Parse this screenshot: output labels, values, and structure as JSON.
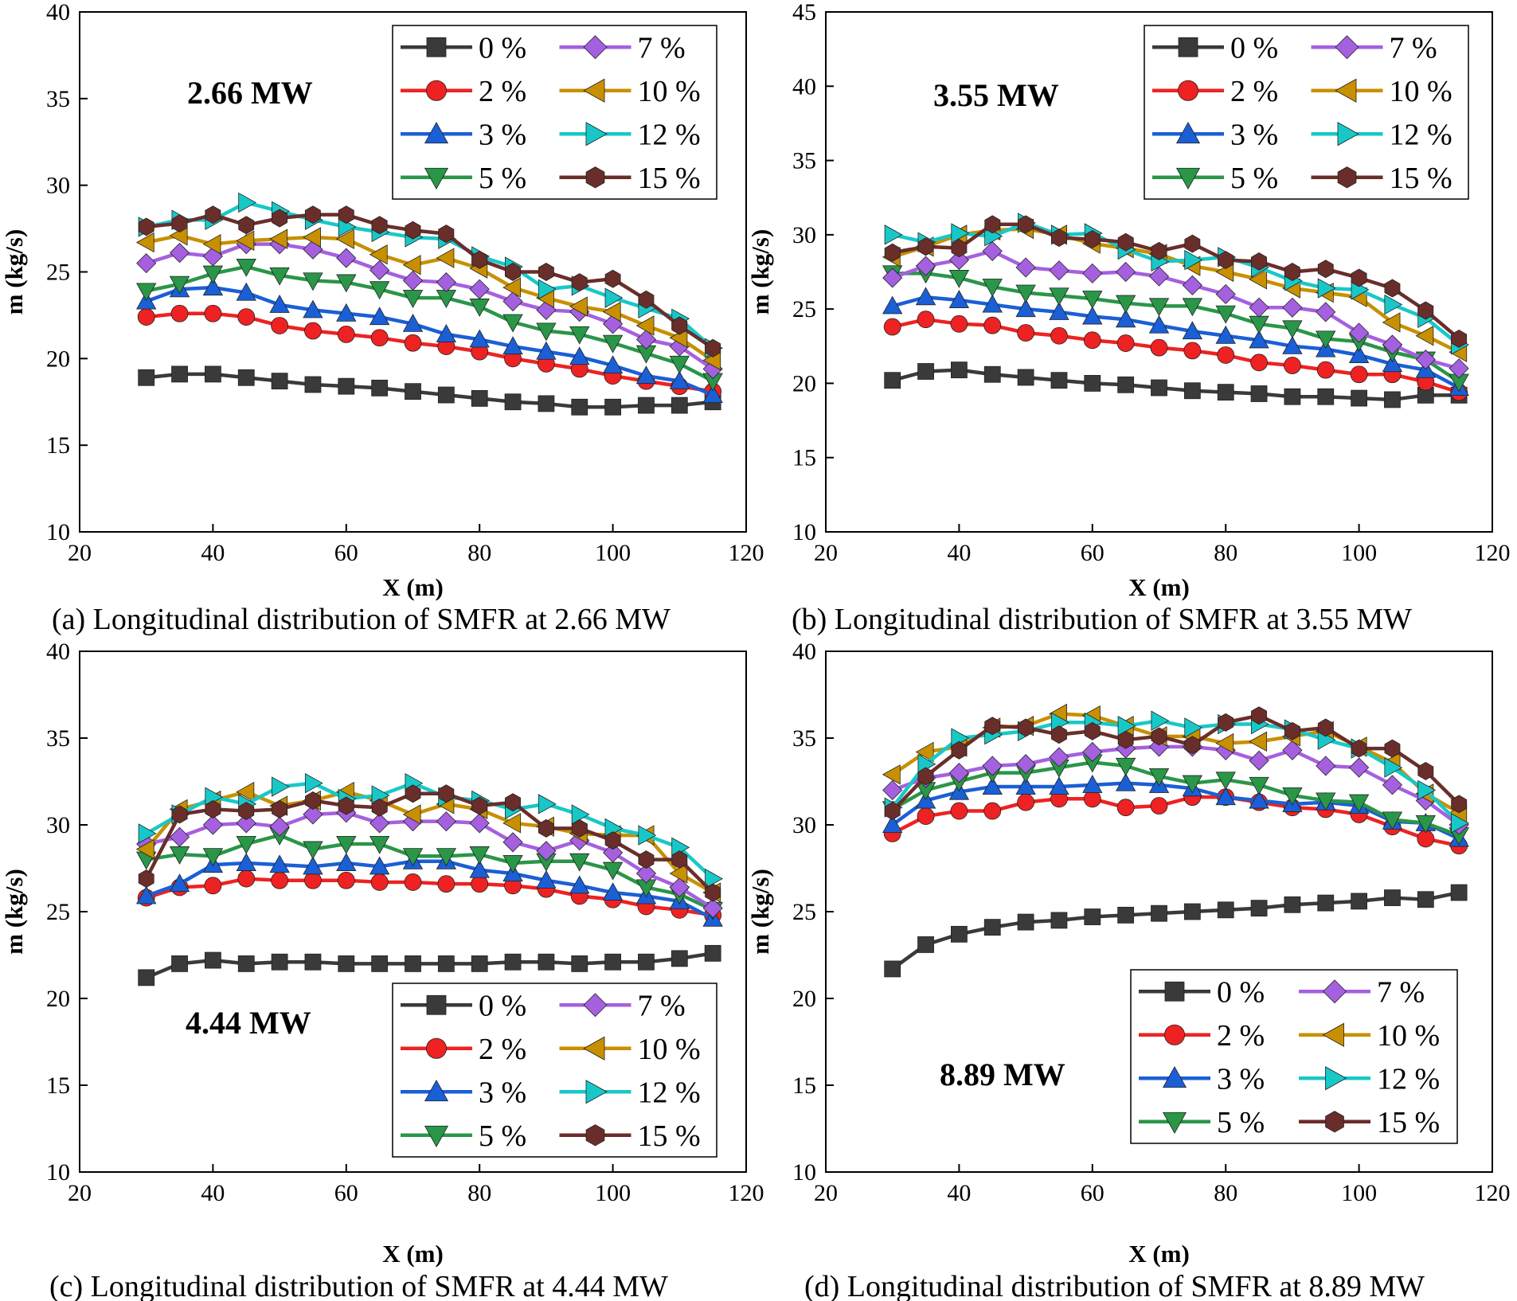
{
  "chart_data": [
    {
      "type": "line",
      "caption": "(a) Longitudinal distribution of SMFR at 2.66 MW",
      "annotation": "2.66 MW",
      "xlabel": "X (m)",
      "ylabel": "m (kg/s)",
      "xlim": [
        20,
        120
      ],
      "ylim": [
        10,
        40
      ],
      "xticks": [
        20,
        40,
        60,
        80,
        100,
        120
      ],
      "yticks": [
        10,
        15,
        20,
        25,
        30,
        35,
        40
      ],
      "legend_position": "top-right",
      "x": [
        30,
        35,
        40,
        45,
        50,
        55,
        60,
        65,
        70,
        75,
        80,
        85,
        90,
        95,
        100,
        105,
        110,
        115
      ],
      "series": [
        {
          "name": "0 %",
          "values": [
            18.9,
            19.1,
            19.1,
            18.9,
            18.7,
            18.5,
            18.4,
            18.3,
            18.1,
            17.9,
            17.7,
            17.5,
            17.4,
            17.2,
            17.2,
            17.3,
            17.3,
            17.5
          ]
        },
        {
          "name": "2 %",
          "values": [
            22.4,
            22.6,
            22.6,
            22.4,
            21.9,
            21.6,
            21.4,
            21.2,
            20.9,
            20.7,
            20.4,
            20.0,
            19.7,
            19.4,
            19.0,
            18.7,
            18.4,
            18.1
          ]
        },
        {
          "name": "3 %",
          "values": [
            23.3,
            24.0,
            24.1,
            23.8,
            23.1,
            22.8,
            22.6,
            22.4,
            22.0,
            21.4,
            21.1,
            20.7,
            20.4,
            20.1,
            19.6,
            19.0,
            18.7,
            17.9
          ]
        },
        {
          "name": "5 %",
          "values": [
            23.9,
            24.3,
            24.9,
            25.3,
            24.8,
            24.5,
            24.4,
            24.0,
            23.5,
            23.5,
            23.0,
            22.1,
            21.6,
            21.4,
            20.9,
            20.3,
            19.7,
            18.7
          ]
        },
        {
          "name": "7 %",
          "values": [
            25.5,
            26.1,
            25.9,
            26.6,
            26.6,
            26.3,
            25.8,
            25.1,
            24.5,
            24.4,
            24.0,
            23.3,
            22.8,
            22.7,
            22.0,
            21.1,
            20.7,
            19.4
          ]
        },
        {
          "name": "10 %",
          "values": [
            26.7,
            27.1,
            26.6,
            26.8,
            26.9,
            27.0,
            26.9,
            26.0,
            25.4,
            25.8,
            25.2,
            24.1,
            23.5,
            23.0,
            22.7,
            21.9,
            21.2,
            19.9
          ]
        },
        {
          "name": "12 %",
          "values": [
            27.6,
            28.0,
            28.0,
            29.0,
            28.5,
            28.0,
            27.6,
            27.3,
            27.0,
            26.9,
            25.9,
            25.3,
            24.0,
            24.2,
            23.5,
            22.9,
            22.3,
            20.6
          ]
        },
        {
          "name": "15 %",
          "values": [
            27.6,
            27.8,
            28.3,
            27.7,
            28.1,
            28.3,
            28.3,
            27.7,
            27.4,
            27.2,
            25.7,
            25.0,
            25.0,
            24.4,
            24.6,
            23.4,
            21.9,
            20.6
          ]
        }
      ]
    },
    {
      "type": "line",
      "caption": "(b) Longitudinal distribution of SMFR at 3.55 MW",
      "annotation": "3.55 MW",
      "xlabel": "X (m)",
      "ylabel": "m (kg/s)",
      "xlim": [
        20,
        120
      ],
      "ylim": [
        10,
        45
      ],
      "xticks": [
        20,
        40,
        60,
        80,
        100,
        120
      ],
      "yticks": [
        10,
        15,
        20,
        25,
        30,
        35,
        40,
        45
      ],
      "legend_position": "top-right",
      "x": [
        30,
        35,
        40,
        45,
        50,
        55,
        60,
        65,
        70,
        75,
        80,
        85,
        90,
        95,
        100,
        105,
        110,
        115
      ],
      "series": [
        {
          "name": "0 %",
          "values": [
            20.2,
            20.8,
            20.9,
            20.6,
            20.4,
            20.2,
            20.0,
            19.9,
            19.7,
            19.5,
            19.4,
            19.3,
            19.1,
            19.1,
            19.0,
            18.9,
            19.2,
            19.2
          ]
        },
        {
          "name": "2 %",
          "values": [
            23.8,
            24.3,
            24.0,
            23.9,
            23.4,
            23.2,
            22.9,
            22.7,
            22.4,
            22.2,
            21.9,
            21.4,
            21.2,
            20.9,
            20.6,
            20.6,
            20.1,
            19.4
          ]
        },
        {
          "name": "3 %",
          "values": [
            25.2,
            25.8,
            25.6,
            25.3,
            25.0,
            24.8,
            24.5,
            24.3,
            23.9,
            23.5,
            23.2,
            22.9,
            22.5,
            22.3,
            21.9,
            21.3,
            20.9,
            19.7
          ]
        },
        {
          "name": "5 %",
          "values": [
            27.4,
            27.4,
            27.1,
            26.5,
            26.1,
            25.9,
            25.7,
            25.4,
            25.2,
            25.2,
            24.7,
            24.0,
            23.7,
            23.0,
            22.8,
            22.1,
            21.6,
            20.1
          ]
        },
        {
          "name": "7 %",
          "values": [
            27.1,
            27.9,
            28.3,
            28.9,
            27.8,
            27.6,
            27.4,
            27.5,
            27.2,
            26.6,
            26.0,
            25.1,
            25.1,
            24.8,
            23.4,
            22.6,
            21.6,
            21.0
          ]
        },
        {
          "name": "10 %",
          "values": [
            28.5,
            29.2,
            30.0,
            30.3,
            30.4,
            30.0,
            29.4,
            29.1,
            28.7,
            27.9,
            27.5,
            27.0,
            26.4,
            26.1,
            25.8,
            24.1,
            23.2,
            22.1
          ]
        },
        {
          "name": "12 %",
          "values": [
            30.0,
            29.5,
            30.1,
            29.9,
            30.8,
            30.0,
            30.1,
            29.0,
            28.2,
            28.3,
            28.5,
            27.8,
            26.9,
            26.4,
            26.3,
            25.3,
            24.4,
            22.6
          ]
        },
        {
          "name": "15 %",
          "values": [
            28.8,
            29.2,
            29.1,
            30.7,
            30.7,
            29.8,
            29.7,
            29.5,
            28.9,
            29.4,
            28.3,
            28.2,
            27.5,
            27.7,
            27.1,
            26.4,
            24.9,
            23.0
          ]
        }
      ]
    },
    {
      "type": "line",
      "caption": "(c) Longitudinal distribution of SMFR at 4.44 MW",
      "annotation": "4.44 MW",
      "xlabel": "X (m)",
      "ylabel": "m (kg/s)",
      "xlim": [
        20,
        120
      ],
      "ylim": [
        10,
        40
      ],
      "xticks": [
        20,
        40,
        60,
        80,
        100,
        120
      ],
      "yticks": [
        10,
        15,
        20,
        25,
        30,
        35,
        40
      ],
      "legend_position": "bottom-right",
      "x": [
        30,
        35,
        40,
        45,
        50,
        55,
        60,
        65,
        70,
        75,
        80,
        85,
        90,
        95,
        100,
        105,
        110,
        115
      ],
      "series": [
        {
          "name": "0 %",
          "values": [
            21.2,
            22.0,
            22.2,
            22.0,
            22.1,
            22.1,
            22.0,
            22.0,
            22.0,
            22.0,
            22.0,
            22.1,
            22.1,
            22.0,
            22.1,
            22.1,
            22.3,
            22.6
          ]
        },
        {
          "name": "2 %",
          "values": [
            25.8,
            26.4,
            26.5,
            26.9,
            26.8,
            26.8,
            26.8,
            26.7,
            26.7,
            26.6,
            26.6,
            26.5,
            26.3,
            25.9,
            25.7,
            25.3,
            25.1,
            24.8
          ]
        },
        {
          "name": "3 %",
          "values": [
            25.9,
            26.6,
            27.7,
            27.8,
            27.7,
            27.6,
            27.8,
            27.6,
            27.9,
            27.9,
            27.4,
            27.2,
            26.8,
            26.5,
            26.1,
            25.9,
            25.6,
            24.6
          ]
        },
        {
          "name": "5 %",
          "values": [
            28.0,
            28.3,
            28.2,
            28.9,
            29.4,
            28.6,
            28.9,
            28.9,
            28.2,
            28.2,
            28.3,
            27.8,
            27.9,
            27.9,
            27.4,
            26.4,
            26.0,
            25.1
          ]
        },
        {
          "name": "7 %",
          "values": [
            28.9,
            29.3,
            30.0,
            30.1,
            29.9,
            30.6,
            30.7,
            30.1,
            30.2,
            30.2,
            30.1,
            29.0,
            28.5,
            29.1,
            28.4,
            27.2,
            26.4,
            25.2
          ]
        },
        {
          "name": "10 %",
          "values": [
            28.6,
            30.9,
            31.4,
            31.9,
            31.1,
            31.4,
            31.9,
            31.4,
            30.6,
            31.2,
            30.9,
            30.1,
            29.9,
            29.5,
            29.4,
            29.4,
            27.2,
            26.1
          ]
        },
        {
          "name": "12 %",
          "values": [
            29.5,
            30.6,
            31.6,
            31.2,
            32.2,
            32.4,
            31.5,
            31.7,
            32.4,
            31.6,
            31.4,
            30.9,
            31.2,
            30.6,
            29.8,
            29.4,
            28.7,
            26.9
          ]
        },
        {
          "name": "15 %",
          "values": [
            26.9,
            30.6,
            30.9,
            30.8,
            30.9,
            31.4,
            31.1,
            31.0,
            31.8,
            31.8,
            31.1,
            31.3,
            29.8,
            29.8,
            29.1,
            28.0,
            28.0,
            26.1
          ]
        }
      ]
    },
    {
      "type": "line",
      "caption": "(d) Longitudinal distribution of SMFR at 8.89 MW",
      "annotation": "8.89 MW",
      "xlabel": "X (m)",
      "ylabel": "m (kg/s)",
      "xlim": [
        20,
        120
      ],
      "ylim": [
        10,
        40
      ],
      "xticks": [
        20,
        40,
        60,
        80,
        100,
        120
      ],
      "yticks": [
        10,
        15,
        20,
        25,
        30,
        35,
        40
      ],
      "legend_position": "bottom-right",
      "x": [
        30,
        35,
        40,
        45,
        50,
        55,
        60,
        65,
        70,
        75,
        80,
        85,
        90,
        95,
        100,
        105,
        110,
        115
      ],
      "series": [
        {
          "name": "0 %",
          "values": [
            21.7,
            23.1,
            23.7,
            24.1,
            24.4,
            24.5,
            24.7,
            24.8,
            24.9,
            25.0,
            25.1,
            25.2,
            25.4,
            25.5,
            25.6,
            25.8,
            25.7,
            26.1
          ]
        },
        {
          "name": "2 %",
          "values": [
            29.5,
            30.5,
            30.8,
            30.8,
            31.3,
            31.5,
            31.5,
            31.0,
            31.1,
            31.6,
            31.6,
            31.3,
            31.0,
            30.9,
            30.6,
            29.9,
            29.2,
            28.8
          ]
        },
        {
          "name": "3 %",
          "values": [
            30.0,
            31.4,
            31.9,
            32.2,
            32.2,
            32.2,
            32.3,
            32.4,
            32.3,
            32.1,
            31.6,
            31.4,
            31.2,
            31.3,
            31.1,
            30.2,
            30.1,
            29.2
          ]
        },
        {
          "name": "5 %",
          "values": [
            30.9,
            32.0,
            32.5,
            33.0,
            33.0,
            33.3,
            33.6,
            33.4,
            32.8,
            32.4,
            32.6,
            32.3,
            31.7,
            31.4,
            31.3,
            30.3,
            30.1,
            29.4
          ]
        },
        {
          "name": "7 %",
          "values": [
            32.0,
            32.7,
            33.0,
            33.4,
            33.5,
            33.9,
            34.2,
            34.4,
            34.5,
            34.5,
            34.3,
            33.7,
            34.3,
            33.4,
            33.3,
            32.3,
            31.4,
            30.0
          ]
        },
        {
          "name": "10 %",
          "values": [
            32.9,
            34.2,
            34.5,
            35.6,
            35.7,
            36.4,
            36.3,
            35.7,
            35.1,
            35.1,
            34.7,
            34.8,
            35.1,
            35.4,
            34.5,
            33.6,
            31.8,
            30.7
          ]
        },
        {
          "name": "12 %",
          "values": [
            31.0,
            33.5,
            35.0,
            35.2,
            35.4,
            35.9,
            35.9,
            35.7,
            36.0,
            35.6,
            35.8,
            35.8,
            35.5,
            34.9,
            34.4,
            33.3,
            32.0,
            30.1
          ]
        },
        {
          "name": "15 %",
          "values": [
            30.8,
            32.8,
            34.3,
            35.7,
            35.6,
            35.2,
            35.4,
            34.9,
            35.1,
            34.6,
            35.9,
            36.3,
            35.4,
            35.6,
            34.4,
            34.4,
            33.1,
            31.2
          ]
        }
      ]
    }
  ],
  "legend_styles": [
    {
      "name": "0 %",
      "color": "#3a3a3a",
      "marker": "square"
    },
    {
      "name": "2 %",
      "color": "#ee2222",
      "marker": "circle"
    },
    {
      "name": "3 %",
      "color": "#1a5fd6",
      "marker": "triangle-up"
    },
    {
      "name": "5 %",
      "color": "#2a9648",
      "marker": "triangle-down"
    },
    {
      "name": "7 %",
      "color": "#a560e0",
      "marker": "diamond"
    },
    {
      "name": "10 %",
      "color": "#c89000",
      "marker": "triangle-left"
    },
    {
      "name": "12 %",
      "color": "#18c8c8",
      "marker": "triangle-right"
    },
    {
      "name": "15 %",
      "color": "#6a2e2a",
      "marker": "hexagon"
    }
  ]
}
